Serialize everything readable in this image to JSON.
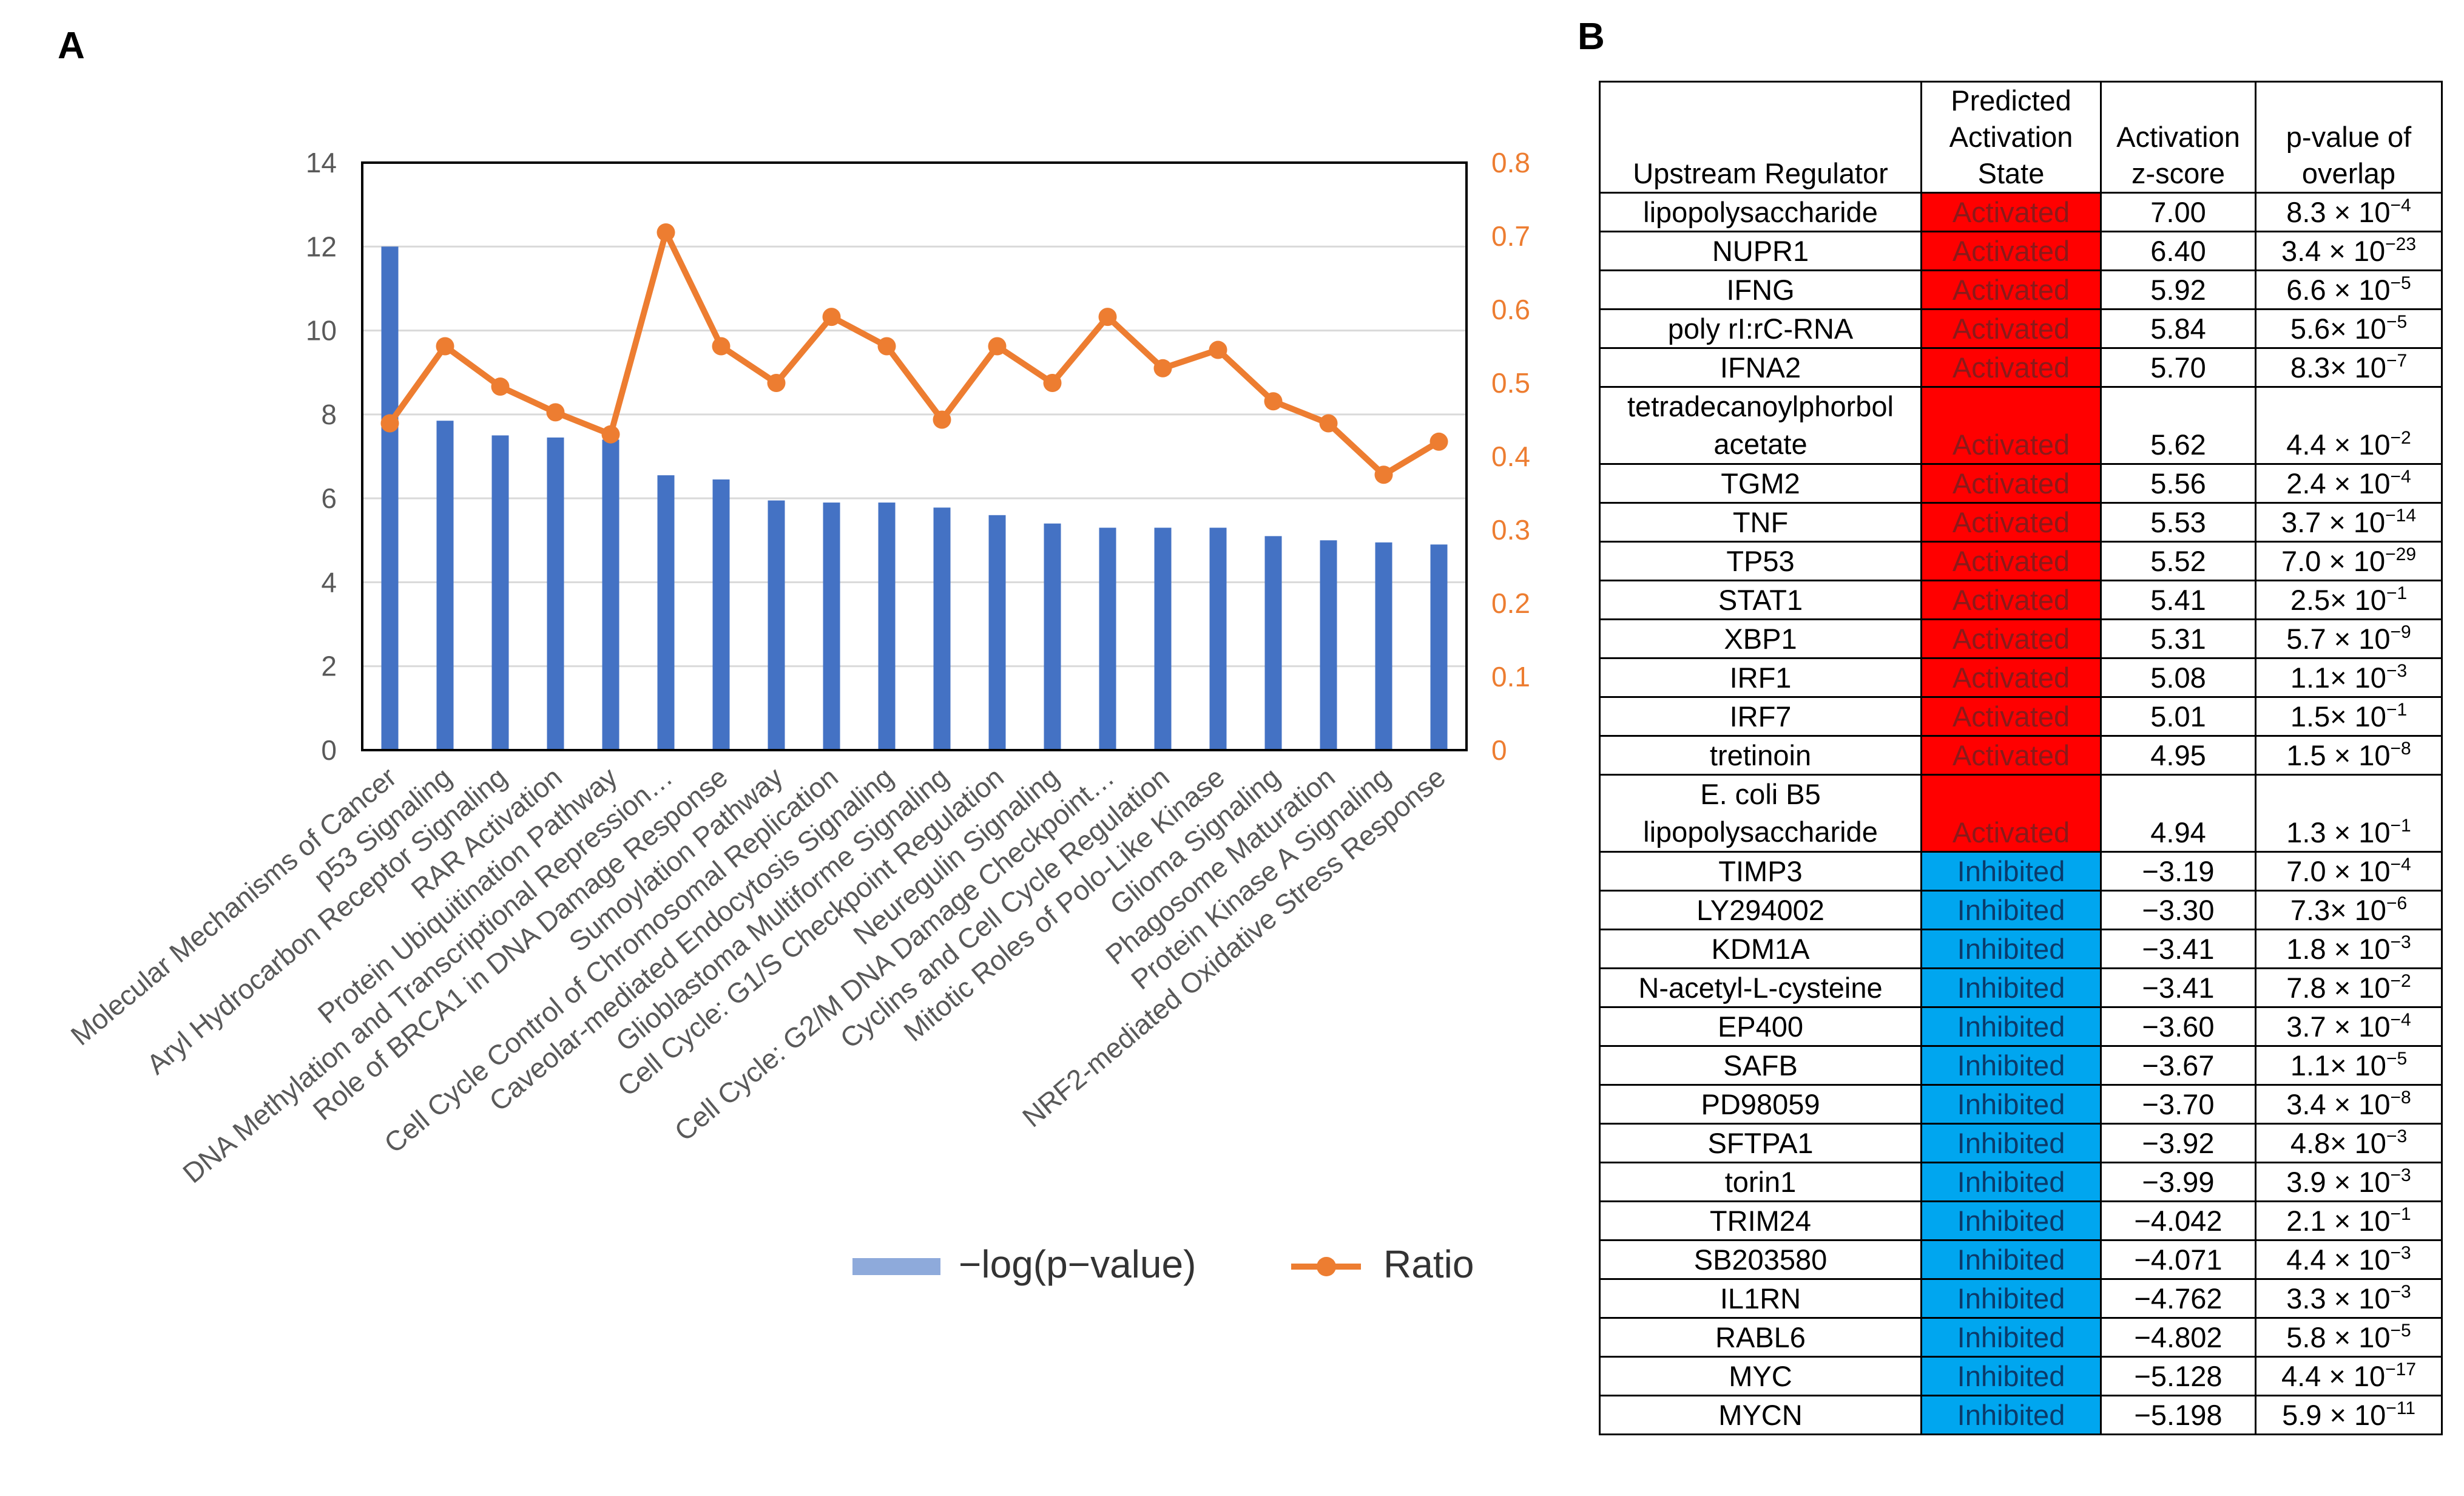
{
  "panels": {
    "a": "A",
    "b": "B"
  },
  "chart_data": {
    "type": "bar",
    "categories": [
      "Molecular Mechanisms of Cancer",
      "p53 Signaling",
      "Aryl Hydrocarbon Receptor Signaling",
      "RAR Activation",
      "Protein Ubiquitination Pathway",
      "DNA Methylation and Transcriptional Repression…",
      "Role of BRCA1 in DNA Damage Response",
      "Sumoylation Pathway",
      "Cell Cycle Control of Chromosomal Replication",
      "Caveolar-mediated Endocytosis Signaling",
      "Glioblastoma Multiforme Signaling",
      "Cell Cycle: G1/S Checkpoint Regulation",
      "Neuregulin Signaling",
      "Cell Cycle: G2/M DNA Damage Checkpoint…",
      "Cyclins and Cell Cycle Regulation",
      "Mitotic Roles of Polo-Like Kinase",
      "Glioma Signaling",
      "Phagosome Maturation",
      "Protein Kinase A Signaling",
      "NRF2-mediated Oxidative Stress Response"
    ],
    "series": [
      {
        "name": "−log(p−value)",
        "type": "bar",
        "axis": "left",
        "color": "#4472c4",
        "values": [
          12.0,
          7.85,
          7.5,
          7.45,
          7.4,
          6.55,
          6.45,
          5.95,
          5.9,
          5.9,
          5.78,
          5.6,
          5.4,
          5.3,
          5.3,
          5.3,
          5.1,
          5.0,
          4.95,
          4.9
        ]
      },
      {
        "name": "Ratio",
        "type": "line",
        "axis": "right",
        "color": "#ed7d31",
        "values": [
          0.445,
          0.55,
          0.495,
          0.46,
          0.43,
          0.705,
          0.55,
          0.5,
          0.59,
          0.55,
          0.45,
          0.55,
          0.5,
          0.59,
          0.52,
          0.545,
          0.475,
          0.445,
          0.375,
          0.42
        ]
      }
    ],
    "ylim_left": [
      0,
      14
    ],
    "ylim_right": [
      0,
      0.8
    ],
    "left_ticks": [
      "0",
      "2",
      "4",
      "6",
      "8",
      "10",
      "12",
      "14"
    ],
    "right_ticks": [
      "0",
      "0.1",
      "0.2",
      "0.3",
      "0.4",
      "0.5",
      "0.6",
      "0.7",
      "0.8"
    ],
    "grid": true,
    "legend_position": "bottom",
    "legend": [
      {
        "label": "−log(p−value)",
        "swatch": "#8eaadb"
      },
      {
        "label": "Ratio",
        "swatch": "#ed7d31"
      }
    ]
  },
  "table": {
    "headers": {
      "regulator": "Upstream Regulator",
      "state": [
        "Predicted",
        "Activation",
        "State"
      ],
      "zscore": [
        "Activation",
        "z-score"
      ],
      "pvalue": [
        "p-value of",
        "overlap"
      ]
    },
    "colors": {
      "activated": "#ff0000",
      "inhibited": "#00a6ef"
    },
    "rows": [
      {
        "regulator": "lipopolysaccharide",
        "state": "Activated",
        "z": "7.00",
        "p_base": "8.3 × 10",
        "p_exp": "−4"
      },
      {
        "regulator": "NUPR1",
        "state": "Activated",
        "z": "6.40",
        "p_base": "3.4 × 10",
        "p_exp": "−23"
      },
      {
        "regulator": "IFNG",
        "state": "Activated",
        "z": "5.92",
        "p_base": "6.6 × 10",
        "p_exp": "−5"
      },
      {
        "regulator": "poly rI:rC-RNA",
        "state": "Activated",
        "z": "5.84",
        "p_base": "5.6× 10",
        "p_exp": "−5"
      },
      {
        "regulator": "IFNA2",
        "state": "Activated",
        "z": "5.70",
        "p_base": "8.3× 10",
        "p_exp": "−7"
      },
      {
        "regulator": "tetradecanoylphorbol acetate",
        "state": "Activated",
        "z": "5.62",
        "p_base": "4.4 × 10",
        "p_exp": "−2",
        "tall": true
      },
      {
        "regulator": "TGM2",
        "state": "Activated",
        "z": "5.56",
        "p_base": "2.4 × 10",
        "p_exp": "−4"
      },
      {
        "regulator": "TNF",
        "state": "Activated",
        "z": "5.53",
        "p_base": "3.7 × 10",
        "p_exp": "−14"
      },
      {
        "regulator": "TP53",
        "state": "Activated",
        "z": "5.52",
        "p_base": "7.0 × 10",
        "p_exp": "−29"
      },
      {
        "regulator": "STAT1",
        "state": "Activated",
        "z": "5.41",
        "p_base": "2.5× 10",
        "p_exp": "−1"
      },
      {
        "regulator": "XBP1",
        "state": "Activated",
        "z": "5.31",
        "p_base": "5.7 × 10",
        "p_exp": "−9"
      },
      {
        "regulator": "IRF1",
        "state": "Activated",
        "z": "5.08",
        "p_base": "1.1× 10",
        "p_exp": "−3"
      },
      {
        "regulator": "IRF7",
        "state": "Activated",
        "z": "5.01",
        "p_base": "1.5× 10",
        "p_exp": "−1"
      },
      {
        "regulator": "tretinoin",
        "state": "Activated",
        "z": "4.95",
        "p_base": "1.5 × 10",
        "p_exp": "−8"
      },
      {
        "regulator": "E. coli B5 lipopolysaccharide",
        "state": "Activated",
        "z": "4.94",
        "p_base": "1.3 × 10",
        "p_exp": "−1",
        "tall": true
      },
      {
        "regulator": "TIMP3",
        "state": "Inhibited",
        "z": "−3.19",
        "p_base": "7.0 × 10",
        "p_exp": "−4"
      },
      {
        "regulator": "LY294002",
        "state": "Inhibited",
        "z": "−3.30",
        "p_base": "7.3× 10",
        "p_exp": "−6"
      },
      {
        "regulator": "KDM1A",
        "state": "Inhibited",
        "z": "−3.41",
        "p_base": "1.8 × 10",
        "p_exp": "−3"
      },
      {
        "regulator": "N-acetyl-L-cysteine",
        "state": "Inhibited",
        "z": "−3.41",
        "p_base": "7.8 × 10",
        "p_exp": "−2"
      },
      {
        "regulator": "EP400",
        "state": "Inhibited",
        "z": "−3.60",
        "p_base": "3.7 × 10",
        "p_exp": "−4"
      },
      {
        "regulator": "SAFB",
        "state": "Inhibited",
        "z": "−3.67",
        "p_base": "1.1× 10",
        "p_exp": "−5"
      },
      {
        "regulator": "PD98059",
        "state": "Inhibited",
        "z": "−3.70",
        "p_base": "3.4 × 10",
        "p_exp": "−8"
      },
      {
        "regulator": "SFTPA1",
        "state": "Inhibited",
        "z": "−3.92",
        "p_base": "4.8× 10",
        "p_exp": "−3"
      },
      {
        "regulator": "torin1",
        "state": "Inhibited",
        "z": "−3.99",
        "p_base": "3.9 × 10",
        "p_exp": "−3"
      },
      {
        "regulator": "TRIM24",
        "state": "Inhibited",
        "z": "−4.042",
        "p_base": "2.1 × 10",
        "p_exp": "−1"
      },
      {
        "regulator": "SB203580",
        "state": "Inhibited",
        "z": "−4.071",
        "p_base": "4.4 × 10",
        "p_exp": "−3"
      },
      {
        "regulator": "IL1RN",
        "state": "Inhibited",
        "z": "−4.762",
        "p_base": "3.3 × 10",
        "p_exp": "−3"
      },
      {
        "regulator": "RABL6",
        "state": "Inhibited",
        "z": "−4.802",
        "p_base": "5.8 × 10",
        "p_exp": "−5"
      },
      {
        "regulator": "MYC",
        "state": "Inhibited",
        "z": "−5.128",
        "p_base": "4.4 × 10",
        "p_exp": "−17"
      },
      {
        "regulator": "MYCN",
        "state": "Inhibited",
        "z": "−5.198",
        "p_base": "5.9 × 10",
        "p_exp": "−11"
      }
    ]
  }
}
